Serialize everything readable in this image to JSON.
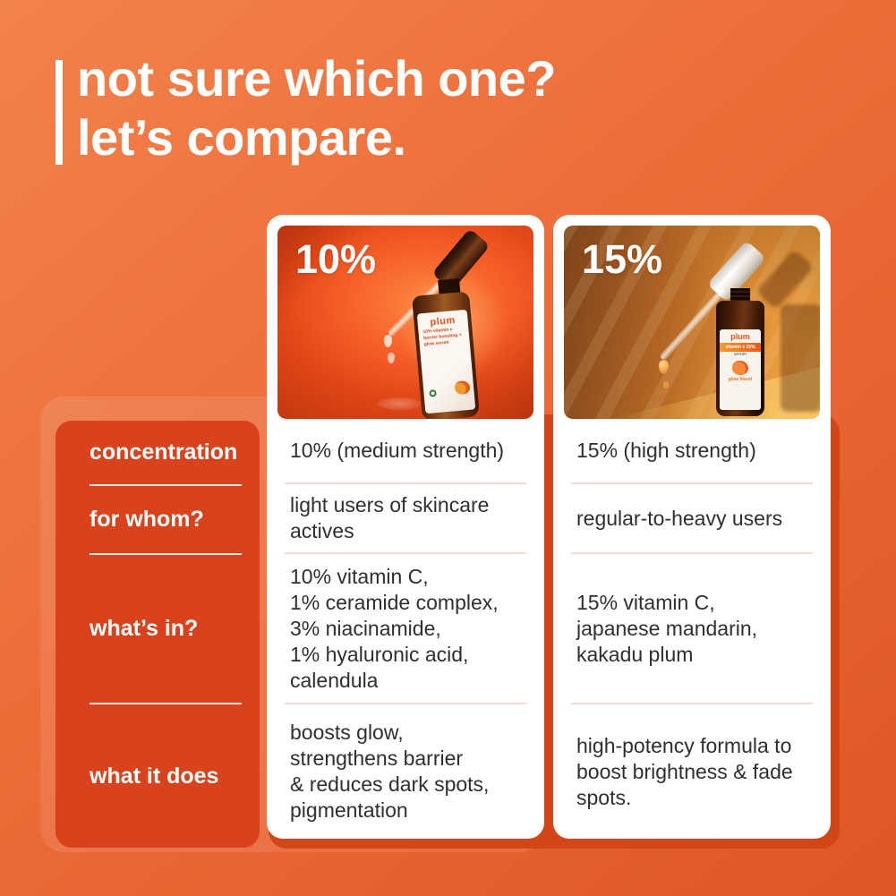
{
  "header": {
    "title_line1": "not sure which one?",
    "title_line2": "let’s compare."
  },
  "products": [
    {
      "percent": "10%",
      "brand": "plum",
      "label_lines": [
        "10% vitamin c",
        "barrier boosting +",
        "glow serum"
      ]
    },
    {
      "percent": "15%",
      "brand": "plum",
      "label_lines": [
        "vitamin c 15%",
        "serum",
        "glow boost"
      ]
    }
  ],
  "table": {
    "row_labels": [
      "concentration",
      "for whom?",
      "what’s in?",
      "what it does"
    ],
    "product1_values": [
      "10% (medium strength)",
      "light users of skincare\nactives",
      "10% vitamin C,\n1% ceramide complex,\n3% niacinamide,\n1% hyaluronic acid,\ncalendula",
      "boosts glow,\nstrengthens barrier\n& reduces dark spots,\npigmentation"
    ],
    "product2_values": [
      "15% (high strength)",
      "regular-to-heavy users",
      "15% vitamin C,\njapanese mandarin,\nkakadu plum",
      "high-potency formula to\nboost brightness & fade\nspots."
    ]
  },
  "colors": {
    "background_top": "#f2824c",
    "background_bottom": "#e05627",
    "panel_red": "#d8431e",
    "shadow_red": "#d24618",
    "card_white": "#ffffff",
    "text_dark": "#2f2f2f",
    "divider_pink": "#f5dbce"
  }
}
